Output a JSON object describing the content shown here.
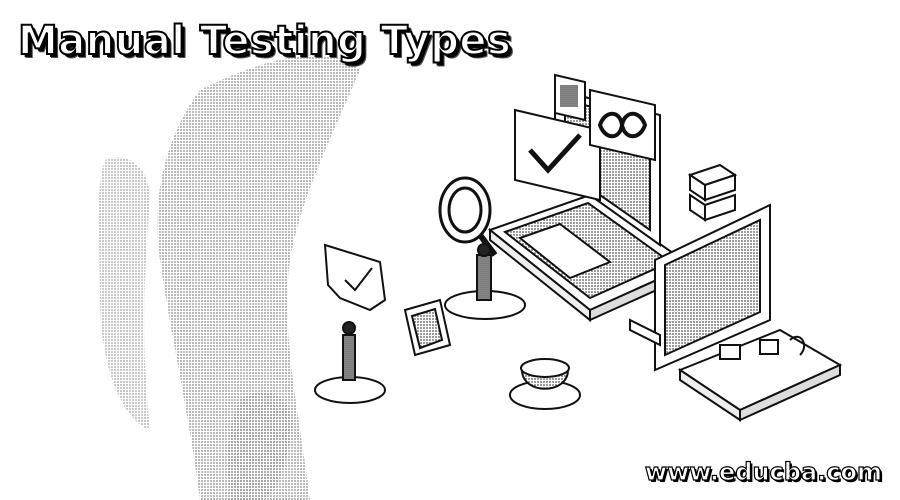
{
  "banner": {
    "title": "Manual Testing Types",
    "watermark": "www.educba.com"
  }
}
